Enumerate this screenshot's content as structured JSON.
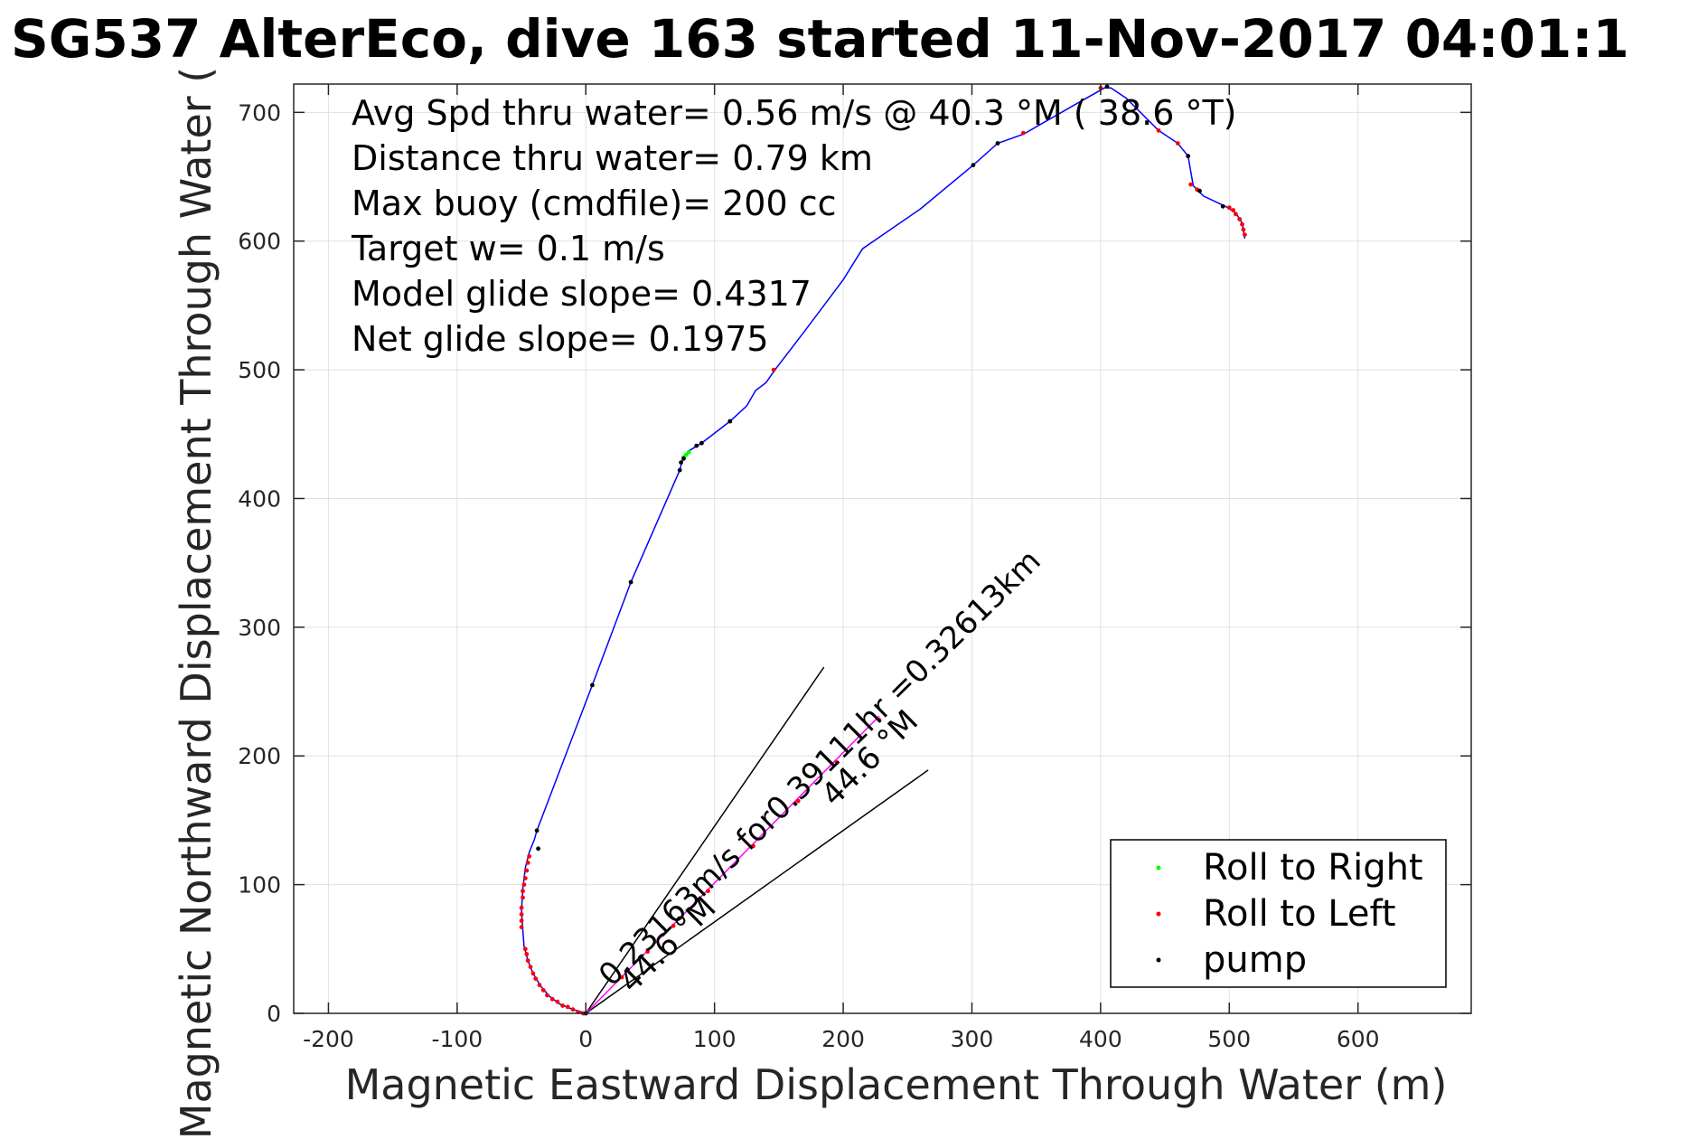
{
  "chart_data": {
    "type": "scatter",
    "title": "SG537 AlterEco, dive 163 started 11-Nov-2017 04:01:1",
    "xlabel": "Magnetic Eastward Displacement Through Water (m)",
    "ylabel": "Magnetic Northward Displacement Through Water (",
    "xlim": [
      -227,
      688
    ],
    "ylim": [
      0,
      722
    ],
    "xticks": [
      -200,
      -100,
      0,
      100,
      200,
      300,
      400,
      500,
      600
    ],
    "yticks": [
      0,
      100,
      200,
      300,
      400,
      500,
      600,
      700
    ],
    "grid": true,
    "legend_position": "bottom-right",
    "colors": {
      "track": "#0000ff",
      "roll_right": "#00ff00",
      "roll_left": "#ff0000",
      "pump": "#000000",
      "line": "#000000",
      "current": "#ff00ff"
    },
    "track": [
      [
        0,
        0
      ],
      [
        -10,
        3
      ],
      [
        -20,
        7
      ],
      [
        -28,
        13
      ],
      [
        -35,
        21
      ],
      [
        -41,
        31
      ],
      [
        -45,
        41
      ],
      [
        -48,
        52
      ],
      [
        -49,
        65
      ],
      [
        -50,
        80
      ],
      [
        -49,
        97
      ],
      [
        -47,
        113
      ],
      [
        -44,
        125
      ],
      [
        -40,
        135
      ],
      [
        -38,
        142
      ],
      [
        5,
        255
      ],
      [
        35,
        335
      ],
      [
        73,
        422
      ],
      [
        75,
        430
      ],
      [
        80,
        437
      ],
      [
        90,
        443
      ],
      [
        112,
        460
      ],
      [
        125,
        472
      ],
      [
        132,
        484
      ],
      [
        140,
        490
      ],
      [
        147,
        500
      ],
      [
        170,
        530
      ],
      [
        200,
        570
      ],
      [
        215,
        594
      ],
      [
        260,
        625
      ],
      [
        301,
        659
      ],
      [
        320,
        676
      ],
      [
        340,
        683
      ],
      [
        380,
        706
      ],
      [
        403,
        719
      ],
      [
        408,
        719
      ],
      [
        420,
        711
      ],
      [
        445,
        686
      ],
      [
        460,
        676
      ],
      [
        468,
        666
      ],
      [
        472,
        643
      ],
      [
        480,
        635
      ],
      [
        497,
        627
      ],
      [
        505,
        622
      ],
      [
        510,
        614
      ],
      [
        512,
        602
      ]
    ],
    "series": [
      {
        "name": "Roll to Right",
        "points": [
          [
            76,
            432
          ],
          [
            78,
            434
          ],
          [
            80,
            436
          ]
        ]
      },
      {
        "name": "Roll to Left",
        "points": [
          [
            -2,
            0
          ],
          [
            -6,
            1
          ],
          [
            -10,
            3
          ],
          [
            -14,
            5
          ],
          [
            -18,
            6
          ],
          [
            -22,
            9
          ],
          [
            -26,
            11
          ],
          [
            -30,
            14
          ],
          [
            -33,
            18
          ],
          [
            -36,
            22
          ],
          [
            -39,
            27
          ],
          [
            -41,
            31
          ],
          [
            -43,
            36
          ],
          [
            -45,
            41
          ],
          [
            -46,
            46
          ],
          [
            -47,
            50
          ],
          [
            -50,
            67
          ],
          [
            -50,
            72
          ],
          [
            -50,
            77
          ],
          [
            -50,
            82
          ],
          [
            -49,
            90
          ],
          [
            -49,
            95
          ],
          [
            -48,
            100
          ],
          [
            -47,
            105
          ],
          [
            -46,
            111
          ],
          [
            -45,
            117
          ],
          [
            -44,
            122
          ],
          [
            28,
            28
          ],
          [
            48,
            48
          ],
          [
            68,
            68
          ],
          [
            95,
            95
          ],
          [
            130,
            130
          ],
          [
            165,
            165
          ],
          [
            195,
            195
          ],
          [
            228,
            228
          ],
          [
            112,
            460
          ],
          [
            146,
            500
          ],
          [
            340,
            684
          ],
          [
            400,
            719
          ],
          [
            445,
            686
          ],
          [
            460,
            676
          ],
          [
            470,
            644
          ],
          [
            475,
            640
          ],
          [
            500,
            626
          ],
          [
            503,
            624
          ],
          [
            505,
            621
          ],
          [
            508,
            617
          ],
          [
            510,
            613
          ],
          [
            511,
            609
          ],
          [
            512,
            605
          ]
        ]
      },
      {
        "name": "pump",
        "points": [
          [
            0,
            0
          ],
          [
            -37,
            128
          ],
          [
            -38,
            142
          ],
          [
            5,
            255
          ],
          [
            35,
            335
          ],
          [
            73,
            422
          ],
          [
            74,
            428
          ],
          [
            76,
            431
          ],
          [
            86,
            441
          ],
          [
            90,
            443
          ],
          [
            112,
            460
          ],
          [
            301,
            659
          ],
          [
            320,
            676
          ],
          [
            405,
            720
          ],
          [
            468,
            666
          ],
          [
            477,
            639
          ],
          [
            495,
            627
          ]
        ]
      }
    ],
    "fan_lines": [
      {
        "from": [
          0,
          0
        ],
        "to": [
          185,
          269
        ]
      },
      {
        "from": [
          0,
          0
        ],
        "to": [
          266,
          189
        ]
      }
    ],
    "current_vector": {
      "from": [
        0,
        0
      ],
      "to": [
        228,
        231
      ]
    },
    "annotations": [
      {
        "text": "Avg Spd thru water=  0.56 m/s @  40.3 °M ( 38.6 °T)",
        "role": "stats"
      },
      {
        "text": "Distance thru water=  0.79 km",
        "role": "stats"
      },
      {
        "text": "Max buoy (cmdfile)= 200 cc",
        "role": "stats"
      },
      {
        "text": "Target w= 0.1 m/s",
        "role": "stats"
      },
      {
        "text": "Model glide slope= 0.4317",
        "role": "stats"
      },
      {
        "text": "Net glide slope= 0.1975",
        "role": "stats"
      },
      {
        "text": "44.6 °M",
        "role": "angle"
      },
      {
        "text": "0.23163m/s for0.39111hr =0.32613km",
        "role": "current"
      },
      {
        "text": "44.6 °M",
        "role": "angle"
      }
    ]
  }
}
